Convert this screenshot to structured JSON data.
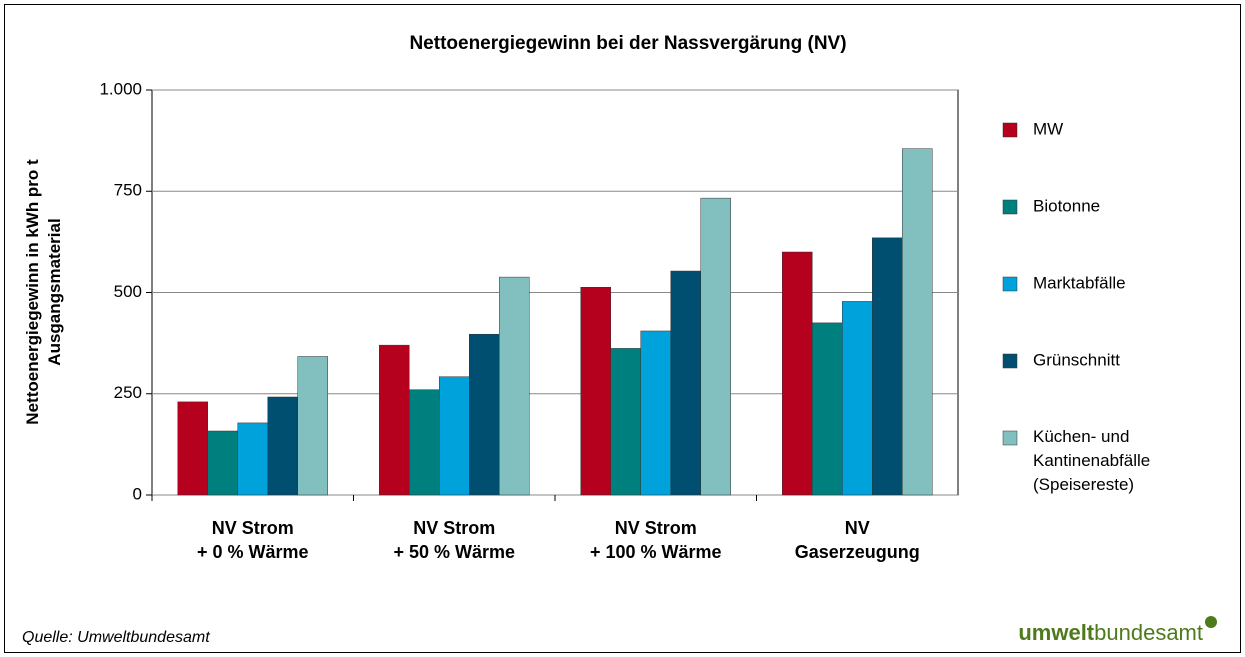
{
  "chart_data": {
    "type": "bar",
    "title": "Nettoenergiegewinn bei der Nassvergärung (NV)",
    "y_label": [
      "Nettoenergiegewinn in kWh pro t",
      "Ausgangsmaterial"
    ],
    "categories": [
      [
        "NV Strom",
        "+ 0 % Wärme"
      ],
      [
        "NV Strom",
        "+ 50 % Wärme"
      ],
      [
        "NV Strom",
        "+ 100 % Wärme"
      ],
      [
        "NV",
        "Gaserzeugung"
      ]
    ],
    "series": [
      {
        "name": "MW",
        "color": "#b5001e",
        "values": [
          230,
          370,
          513,
          600
        ]
      },
      {
        "name": "Biotonne",
        "color": "#007f7f",
        "values": [
          158,
          260,
          362,
          425
        ]
      },
      {
        "name": "Marktabfälle",
        "color": "#00a2dc",
        "values": [
          178,
          292,
          405,
          478
        ]
      },
      {
        "name": "Grünschnitt",
        "color": "#004f71",
        "values": [
          242,
          397,
          553,
          635
        ]
      },
      {
        "name": "Küchen- und Kantinenabfälle (Speisereste)",
        "color": "#82bfbf",
        "values": [
          342,
          538,
          733,
          855
        ]
      }
    ],
    "ylim": [
      0,
      1000
    ],
    "yticks": [
      0,
      250,
      500,
      750,
      {
        "value": 1000,
        "label": "1.000"
      }
    ],
    "grid": true,
    "legend": "right",
    "source": "Quelle: Umweltbundesamt",
    "logo": [
      "umwelt",
      "bundesamt"
    ]
  }
}
